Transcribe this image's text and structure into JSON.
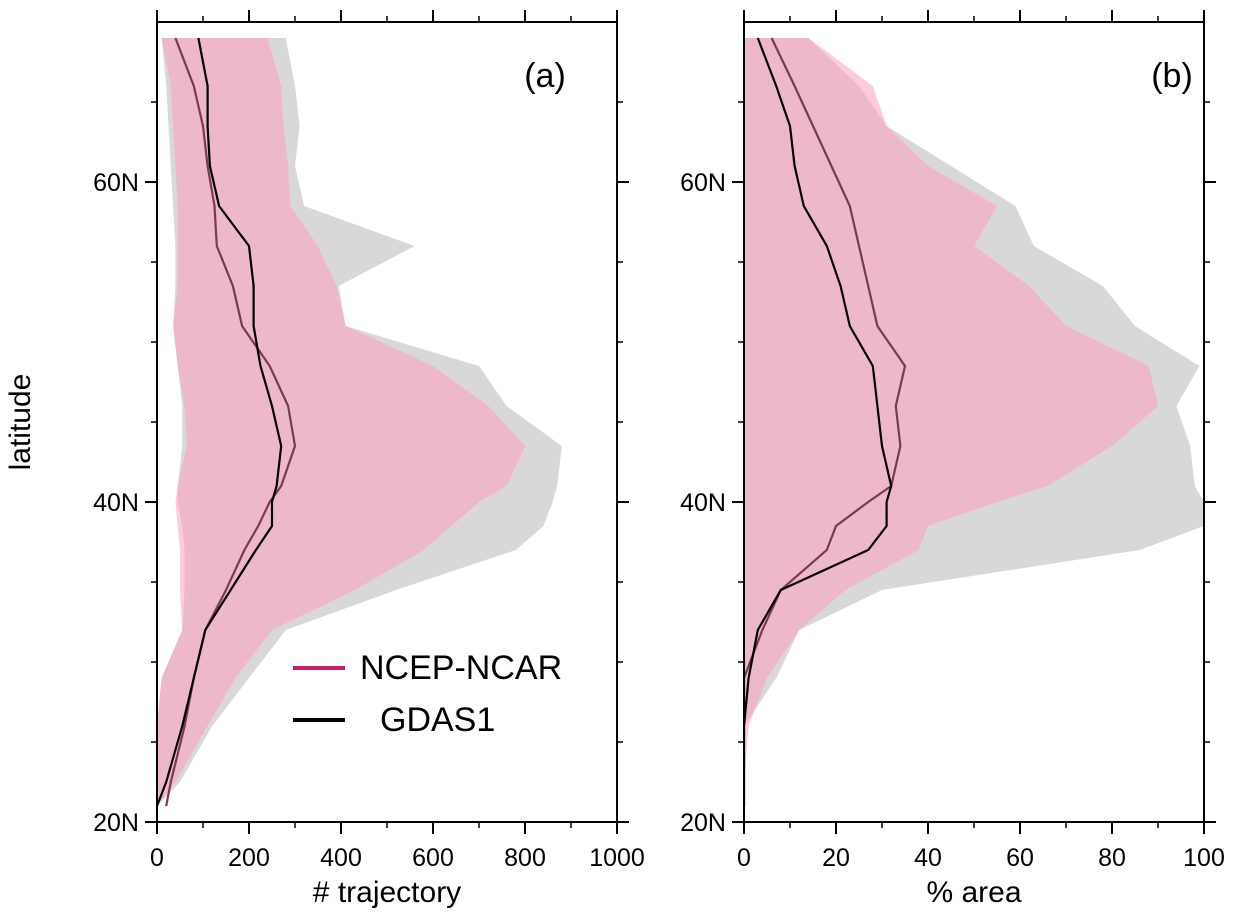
{
  "shared": {
    "ylabel": "latitude",
    "yticks": [
      {
        "value": 20,
        "label": "20N"
      },
      {
        "value": 40,
        "label": "40N"
      },
      {
        "value": 60,
        "label": "60N"
      }
    ],
    "ylim": [
      20,
      70
    ]
  },
  "legend": {
    "placement": "lower-right of panel (a)",
    "entries": [
      {
        "label": "NCEP-NCAR",
        "color": "#c8206a"
      },
      {
        "label": "GDAS1",
        "color": "#000000"
      }
    ]
  },
  "colors": {
    "ncep_band": "#ff9ec0",
    "gdas_band": "#c8c8c8",
    "overlap": "#dcbcc6",
    "ncep_line": "#7a3a50",
    "gdas_line": "#000000"
  },
  "chart_data": [
    {
      "type": "line",
      "panel_label": "(a)",
      "xlabel": "# trajectory",
      "ylabel": "latitude",
      "xlim": [
        0,
        1000
      ],
      "ylim": [
        20,
        70
      ],
      "xticks": [
        "0",
        "200",
        "400",
        "600",
        "800",
        "1000"
      ],
      "xtick_values": [
        0,
        200,
        400,
        600,
        800,
        1000
      ],
      "y": [
        21,
        22.5,
        26,
        29,
        32,
        34.5,
        37,
        38.5,
        40,
        41,
        43.5,
        46,
        48.5,
        51,
        53.5,
        56,
        58.5,
        61,
        63.5,
        66,
        69
      ],
      "series": [
        {
          "name": "NCEP-NCAR",
          "line": [
            20,
            30,
            60,
            80,
            105,
            150,
            190,
            220,
            245,
            270,
            300,
            285,
            245,
            185,
            165,
            130,
            125,
            110,
            100,
            80,
            40
          ],
          "band_low": [
            0,
            0,
            0,
            10,
            55,
            50,
            50,
            45,
            40,
            45,
            65,
            60,
            45,
            35,
            45,
            45,
            45,
            40,
            35,
            30,
            10
          ],
          "band_high": [
            0,
            40,
            110,
            170,
            250,
            430,
            580,
            640,
            700,
            760,
            800,
            720,
            600,
            410,
            390,
            350,
            290,
            285,
            275,
            270,
            240
          ]
        },
        {
          "name": "GDAS1",
          "line": [
            0,
            20,
            55,
            80,
            105,
            160,
            215,
            250,
            250,
            260,
            270,
            250,
            225,
            210,
            210,
            200,
            135,
            115,
            110,
            110,
            90
          ],
          "band_low": [
            0,
            0,
            0,
            10,
            55,
            60,
            60,
            55,
            45,
            45,
            55,
            55,
            45,
            35,
            40,
            40,
            35,
            30,
            25,
            20,
            10
          ],
          "band_high": [
            0,
            50,
            120,
            200,
            280,
            520,
            780,
            840,
            860,
            870,
            880,
            760,
            700,
            410,
            395,
            560,
            320,
            300,
            310,
            300,
            280
          ]
        }
      ]
    },
    {
      "type": "line",
      "panel_label": "(b)",
      "xlabel": "% area",
      "ylabel": "latitude",
      "xlim": [
        0,
        100
      ],
      "ylim": [
        20,
        70
      ],
      "xticks": [
        "0",
        "20",
        "40",
        "60",
        "80",
        "100"
      ],
      "xtick_values": [
        0,
        20,
        40,
        60,
        80,
        100
      ],
      "y": [
        21,
        22.5,
        26,
        29,
        32,
        34.5,
        37,
        38.5,
        40,
        41,
        43.5,
        46,
        48.5,
        51,
        53.5,
        56,
        58.5,
        61,
        63.5,
        66,
        69
      ],
      "series": [
        {
          "name": "NCEP-NCAR",
          "line": [
            0,
            0,
            0,
            0,
            4,
            8,
            18,
            20,
            27,
            32,
            34,
            33,
            35,
            29,
            27,
            25,
            23,
            19,
            15,
            11,
            6
          ],
          "band_low": [
            0,
            0,
            0,
            0,
            0,
            0,
            0,
            0,
            0,
            0,
            0,
            0,
            0,
            0,
            0,
            0,
            0,
            0,
            0,
            0,
            0
          ],
          "band_high": [
            0,
            0,
            1,
            5,
            12,
            22,
            38,
            40,
            55,
            66,
            80,
            90,
            88,
            70,
            62,
            50,
            55,
            40,
            31,
            28,
            14
          ]
        },
        {
          "name": "GDAS1",
          "line": [
            0,
            0,
            0,
            1,
            3,
            8,
            27,
            31,
            31,
            32,
            30,
            29,
            28,
            23,
            21,
            18,
            13,
            11,
            10,
            7,
            3
          ],
          "band_low": [
            0,
            0,
            0,
            0,
            0,
            0,
            0,
            0,
            0,
            0,
            0,
            0,
            0,
            0,
            0,
            0,
            0,
            0,
            0,
            0,
            0
          ],
          "band_high": [
            0,
            0,
            0,
            7,
            12,
            30,
            86,
            100,
            100,
            98,
            97,
            94,
            99,
            85,
            78,
            63,
            59,
            45,
            31,
            25,
            14
          ]
        }
      ]
    }
  ]
}
